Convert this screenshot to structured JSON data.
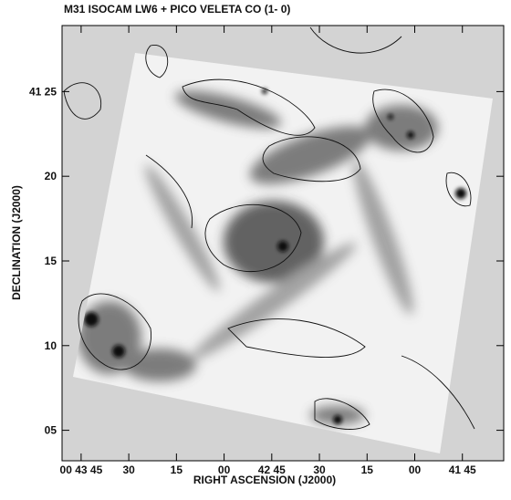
{
  "chart_data": {
    "type": "image",
    "title": "M31   ISOCAM  LW6   +   PICO VELETA  CO (1- 0)",
    "xlabel": "RIGHT ASCENSION (J2000)",
    "ylabel": "DECLINATION (J2000)",
    "xlim": [
      171,
      32
    ],
    "xticks": [
      {
        "value": 165,
        "label": "00 43 45"
      },
      {
        "value": 150,
        "label": "30"
      },
      {
        "value": 135,
        "label": "15"
      },
      {
        "value": 120,
        "label": "00"
      },
      {
        "value": 105,
        "label": "42 45"
      },
      {
        "value": 90,
        "label": "30"
      },
      {
        "value": 75,
        "label": "15"
      },
      {
        "value": 60,
        "label": "00"
      },
      {
        "value": 45,
        "label": "41 45"
      }
    ],
    "ylim": [
      3.2,
      28.9
    ],
    "yticks": [
      {
        "value": 25,
        "label": "41 25"
      },
      20,
      15,
      10,
      {
        "value": 5,
        "label": "05"
      }
    ]
  }
}
